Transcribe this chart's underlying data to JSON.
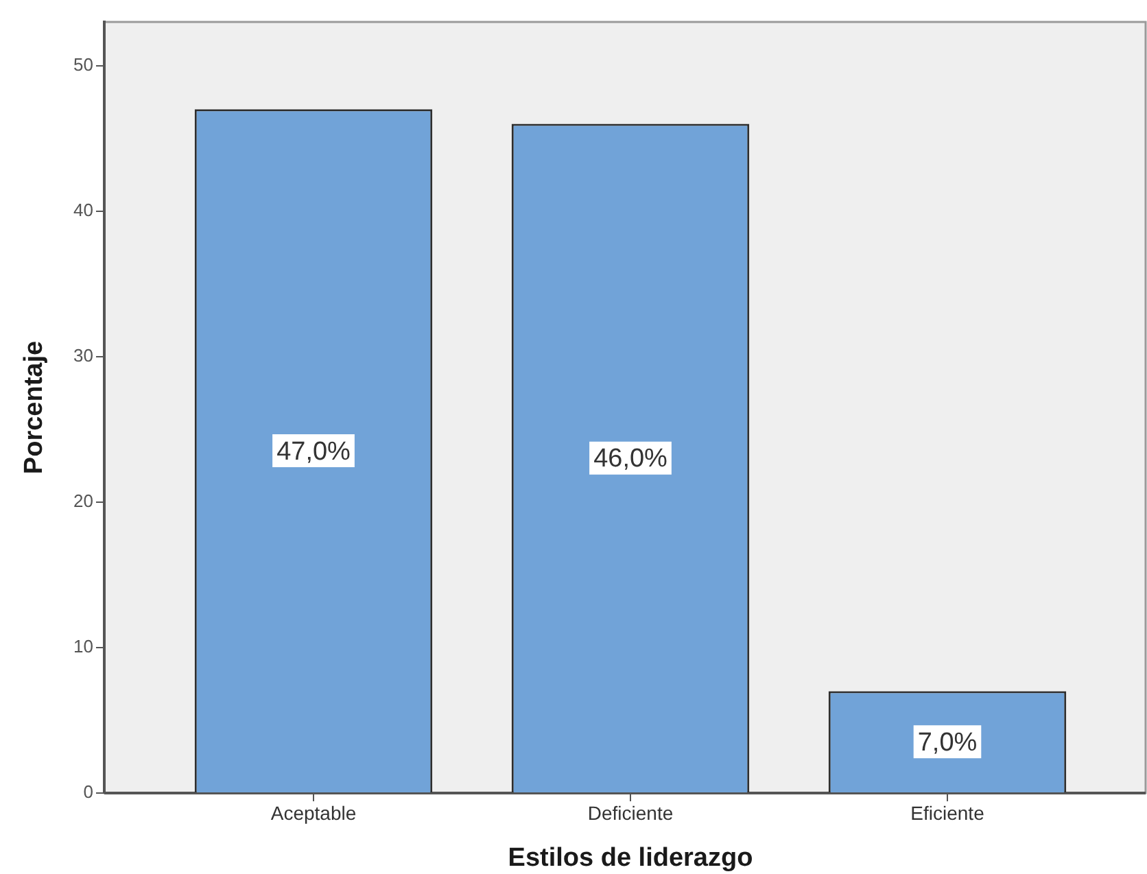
{
  "chart_data": {
    "type": "bar",
    "xlabel": "Estilos de liderazgo",
    "ylabel": "Porcentaje",
    "categories": [
      "Aceptable",
      "Deficiente",
      "Eficiente"
    ],
    "values": [
      47,
      46,
      7
    ],
    "value_labels": [
      "47,0%",
      "46,0%",
      "7,0%"
    ],
    "color": "#71a3d8",
    "ylim": [
      0,
      53
    ],
    "yticks": [
      0,
      10,
      20,
      30,
      40,
      50
    ]
  }
}
